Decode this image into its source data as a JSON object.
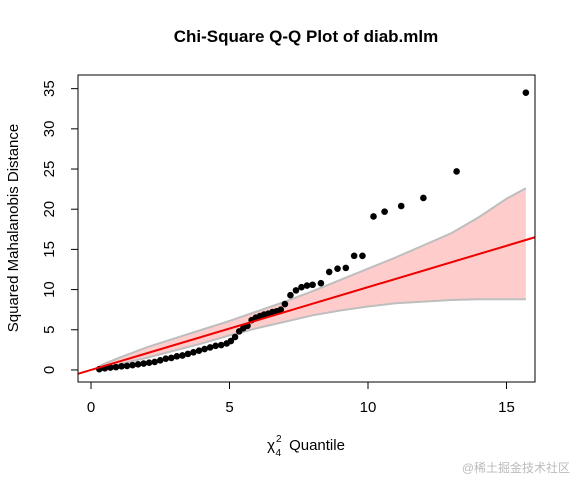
{
  "chart_data": {
    "type": "qqplot",
    "title": "Chi-Square Q-Q Plot of diab.mlm",
    "xlabel": {
      "symbol": "χ",
      "sup": "2",
      "sub": "4",
      "text": "Quantile"
    },
    "ylabel": "Squared Mahalanobis Distance",
    "watermark": "@稀土掘金技术社区",
    "xlim": [
      -0.47,
      16.03
    ],
    "ylim": [
      -1.5,
      36.7
    ],
    "xticks": [
      0,
      5,
      10,
      15
    ],
    "yticks": [
      0,
      5,
      10,
      15,
      20,
      25,
      30,
      35
    ],
    "point_color": "#000000",
    "line_color": "#ee0000",
    "band_color": "#ffcccc",
    "band_edge_color": "#bebebe",
    "points": {
      "x": [
        0.3,
        0.5,
        0.7,
        0.9,
        1.1,
        1.3,
        1.5,
        1.7,
        1.9,
        2.1,
        2.3,
        2.5,
        2.7,
        2.9,
        3.1,
        3.3,
        3.5,
        3.7,
        3.9,
        4.1,
        4.3,
        4.5,
        4.7,
        4.9,
        5.05,
        5.2,
        5.35,
        5.5,
        5.65,
        5.8,
        5.95,
        6.1,
        6.25,
        6.4,
        6.55,
        6.7,
        6.85,
        7.0,
        7.2,
        7.4,
        7.6,
        7.8,
        8.0,
        8.3,
        8.6,
        8.9,
        9.2,
        9.5,
        9.8,
        10.2,
        10.6,
        11.2,
        12.0,
        13.2,
        15.7
      ],
      "y": [
        0.1,
        0.2,
        0.3,
        0.35,
        0.45,
        0.5,
        0.6,
        0.7,
        0.8,
        0.9,
        1.0,
        1.2,
        1.4,
        1.5,
        1.7,
        1.8,
        2.0,
        2.2,
        2.4,
        2.6,
        2.8,
        3.0,
        3.1,
        3.3,
        3.6,
        4.1,
        4.8,
        5.2,
        5.5,
        6.2,
        6.5,
        6.7,
        6.9,
        7.0,
        7.2,
        7.3,
        7.5,
        8.2,
        9.3,
        9.9,
        10.3,
        10.5,
        10.6,
        10.8,
        12.2,
        12.6,
        12.7,
        14.2,
        14.2,
        19.1,
        19.7,
        20.4,
        21.4,
        24.7,
        34.5
      ]
    },
    "reference_line": {
      "intercept": 0,
      "slope": 1.03
    },
    "band": {
      "x": [
        0.3,
        1,
        2,
        3,
        4,
        5,
        6,
        7,
        8,
        9,
        10,
        11,
        12,
        13,
        14,
        15,
        15.7
      ],
      "upper": [
        0.5,
        1.5,
        2.8,
        3.9,
        5.0,
        6.1,
        7.3,
        8.5,
        9.8,
        11.2,
        12.6,
        14.0,
        15.5,
        17.0,
        19.0,
        21.3,
        22.6
      ],
      "lower": [
        0.1,
        0.7,
        1.5,
        2.4,
        3.3,
        4.3,
        5.2,
        6.0,
        6.8,
        7.4,
        7.9,
        8.3,
        8.5,
        8.7,
        8.8,
        8.8,
        8.8
      ]
    }
  }
}
